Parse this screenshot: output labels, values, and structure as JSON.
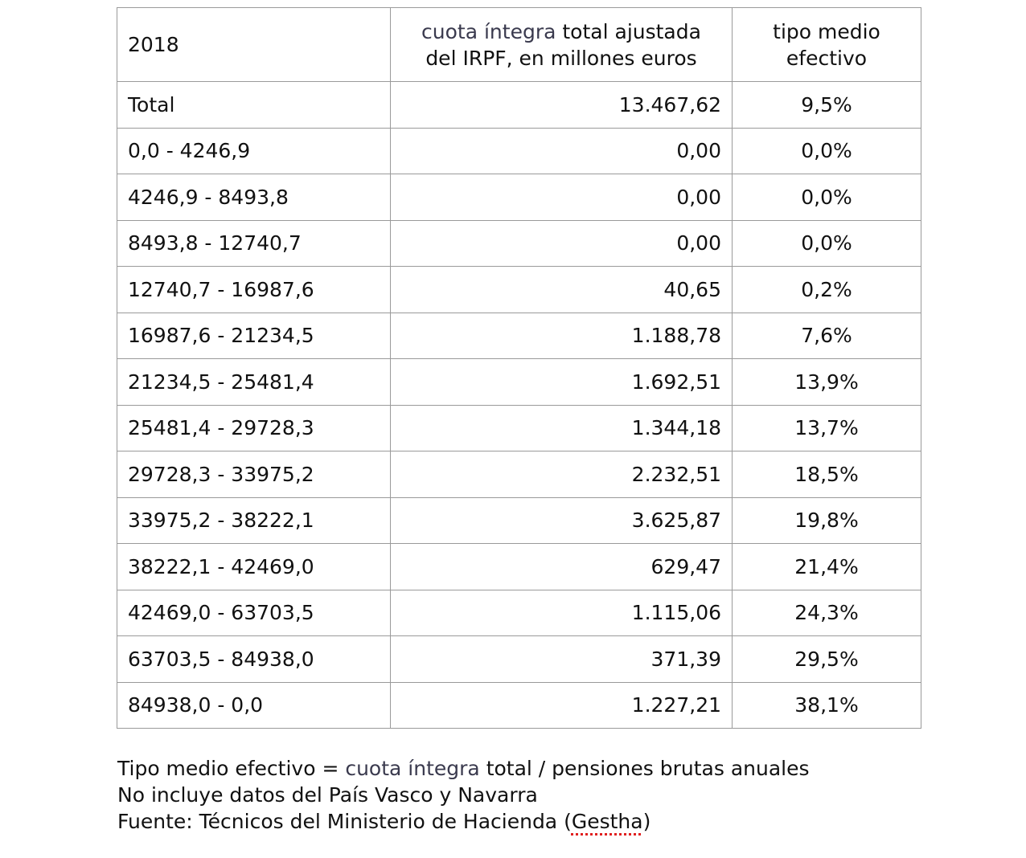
{
  "table": {
    "header": {
      "year": "2018",
      "col2_part1": "cuota íntegra",
      "col2_part2": " total ajustada",
      "col2_line2": "del IRPF, en millones euros",
      "col3_line1": "tipo medio",
      "col3_line2": "efectivo"
    },
    "rows": [
      {
        "range": "Total",
        "amount": "13.467,62",
        "rate": "9,5%"
      },
      {
        "range": "0,0 - 4246,9",
        "amount": "0,00",
        "rate": "0,0%"
      },
      {
        "range": "4246,9 - 8493,8",
        "amount": "0,00",
        "rate": "0,0%"
      },
      {
        "range": "8493,8 - 12740,7",
        "amount": "0,00",
        "rate": "0,0%"
      },
      {
        "range": "12740,7 - 16987,6",
        "amount": "40,65",
        "rate": "0,2%"
      },
      {
        "range": "16987,6 - 21234,5",
        "amount": "1.188,78",
        "rate": "7,6%"
      },
      {
        "range": "21234,5 - 25481,4",
        "amount": "1.692,51",
        "rate": "13,9%"
      },
      {
        "range": "25481,4 - 29728,3",
        "amount": "1.344,18",
        "rate": "13,7%"
      },
      {
        "range": "29728,3 - 33975,2",
        "amount": "2.232,51",
        "rate": "18,5%"
      },
      {
        "range": "33975,2 - 38222,1",
        "amount": "3.625,87",
        "rate": "19,8%"
      },
      {
        "range": "38222,1 - 42469,0",
        "amount": "629,47",
        "rate": "21,4%"
      },
      {
        "range": "42469,0 - 63703,5",
        "amount": "1.115,06",
        "rate": "24,3%"
      },
      {
        "range": "63703,5 - 84938,0",
        "amount": "371,39",
        "rate": "29,5%"
      },
      {
        "range": "84938,0 - 0,0",
        "amount": "1.227,21",
        "rate": "38,1%"
      }
    ]
  },
  "notes": {
    "line1_a": "Tipo medio efectivo = ",
    "line1_b": "cuota íntegra",
    "line1_c": " total / pensiones brutas anuales",
    "line2": "No incluye datos del País Vasco y Navarra",
    "line3_a": "Fuente: Técnicos del Ministerio de Hacienda (",
    "line3_b": "Gestha",
    "line3_c": ")"
  }
}
